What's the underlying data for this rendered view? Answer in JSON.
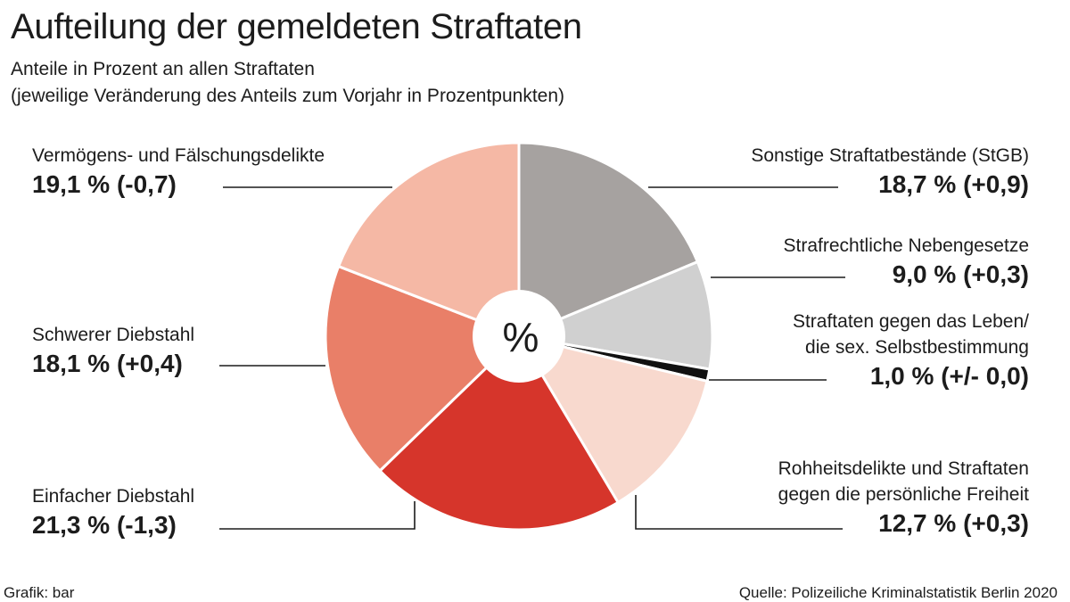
{
  "title": "Aufteilung der gemeldeten Straftaten",
  "subtitle_line1": "Anteile in Prozent an allen Straftaten",
  "subtitle_line2": " (jeweilige Veränderung des Anteils zum Vorjahr in Prozentpunkten)",
  "center_symbol": "%",
  "credit": "Grafik: bar",
  "source": "Quelle: Polizeiliche Kriminalstatistik Berlin 2020",
  "chart_data": {
    "type": "pie",
    "title": "Aufteilung der gemeldeten Straftaten",
    "unit": "%",
    "slices": [
      {
        "key": "sonstige",
        "label": "Sonstige Straftatbestände (StGB)",
        "value": 18.7,
        "value_label": "18,7 % (+0,9)",
        "change": 0.9,
        "color": "#a6a2a0"
      },
      {
        "key": "nebengesetze",
        "label": "Strafrechtliche Nebengesetze",
        "value": 9.0,
        "value_label": "9,0 % (+0,3)",
        "change": 0.3,
        "color": "#d0d0d0"
      },
      {
        "key": "leben",
        "label": "Straftaten gegen das Leben/ die sex. Selbstbestimmung",
        "label_line1": "Straftaten gegen das Leben/",
        "label_line2": "die sex. Selbstbestimmung",
        "value": 1.0,
        "value_label": "1,0 % (+/- 0,0)",
        "change": 0.0,
        "color": "#111111"
      },
      {
        "key": "rohheit",
        "label": "Rohheitsdelikte und Straftaten gegen die persönliche Freiheit",
        "label_line1": "Rohheitsdelikte und Straftaten",
        "label_line2": "gegen die persönliche Freiheit",
        "value": 12.7,
        "value_label": "12,7 % (+0,3)",
        "change": 0.3,
        "color": "#f8d9ce"
      },
      {
        "key": "einfacher",
        "label": "Einfacher Diebstahl",
        "value": 21.3,
        "value_label": "21,3 % (-1,3)",
        "change": -1.3,
        "color": "#d6352b"
      },
      {
        "key": "schwerer",
        "label": "Schwerer Diebstahl",
        "value": 18.1,
        "value_label": "18,1 % (+0,4)",
        "change": 0.4,
        "color": "#e97f68"
      },
      {
        "key": "vermoegen",
        "label": "Vermögens- und Fälschungsdelikte",
        "value": 19.1,
        "value_label": "19,1 % (-0,7)",
        "change": -0.7,
        "color": "#f5b8a5"
      }
    ]
  }
}
